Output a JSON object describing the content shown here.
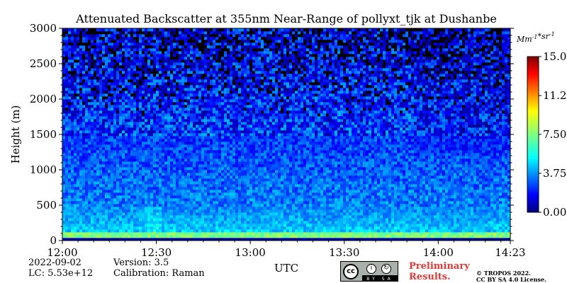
{
  "chart_data": {
    "type": "heatmap",
    "title": "Attenuated Backscatter at 355nm Near-Range of pollyxt_tjk at Dushanbe",
    "xlabel": "UTC",
    "ylabel": "Height (m)",
    "x_ticks": [
      "12:00",
      "12:30",
      "13:00",
      "13:30",
      "14:00",
      "14:23"
    ],
    "x_range": [
      "12:00",
      "14:23"
    ],
    "y_ticks": [
      0,
      500,
      1000,
      1500,
      2000,
      2500,
      3000
    ],
    "ylim": [
      0,
      3000
    ],
    "colorbar": {
      "unit": "Mm^-1 * sr^-1",
      "min": 0.0,
      "max": 15.0,
      "tick_labels": [
        "0.00",
        "3.75",
        "7.50",
        "11.25",
        "15.00"
      ],
      "colormap": "jet"
    },
    "profile_description": [
      {
        "height_range_m": [
          0,
          50
        ],
        "value_level": "very low (dark blue)"
      },
      {
        "height_range_m": [
          50,
          110
        ],
        "value_level": "high (yellow-green band)"
      },
      {
        "height_range_m": [
          110,
          500
        ],
        "value_level": "moderate (green, ~4-6)"
      },
      {
        "height_range_m": [
          500,
          1500
        ],
        "value_level": "low-moderate (cyan, ~2.5-4)"
      },
      {
        "height_range_m": [
          1500,
          3000
        ],
        "value_level": "low (blue, noisy)"
      }
    ]
  },
  "footer": {
    "date": "2022-09-02",
    "lc": "LC: 5.53e+12",
    "version": "Version: 3.5",
    "calibration": "Calibration: Raman",
    "preliminary_line1": "Preliminary",
    "preliminary_line2": "Results.",
    "copyright_line1": "© TROPOS 2022.",
    "copyright_line2": "CC BY SA 4.0 License.",
    "badge_cc": "cc",
    "badge_license": "BY SA"
  },
  "colors": {
    "preliminary": "#e53935",
    "colormap_stops": [
      "#00007f",
      "#0000ff",
      "#007fff",
      "#00ffff",
      "#7fff7f",
      "#ffff00",
      "#ff7f00",
      "#ff0000",
      "#7f0000"
    ]
  }
}
